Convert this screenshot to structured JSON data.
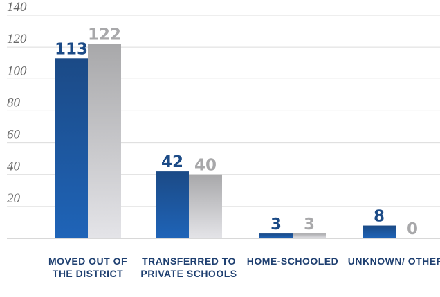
{
  "chart_data": {
    "type": "bar",
    "categories": [
      "MOVED OUT OF THE DISTRICT",
      "TRANSFERRED TO PRIVATE SCHOOLS",
      "HOME-SCHOOLED",
      "UNKNOWN/ OTHER"
    ],
    "series": [
      {
        "color": "#1b4a86",
        "values": [
          113,
          42,
          3,
          8
        ]
      },
      {
        "color": "#a8a8aa",
        "values": [
          122,
          40,
          3,
          0
        ]
      }
    ],
    "ylim": [
      0,
      140
    ],
    "yticks": [
      20,
      40,
      60,
      80,
      100,
      120,
      140
    ],
    "grid": true
  }
}
